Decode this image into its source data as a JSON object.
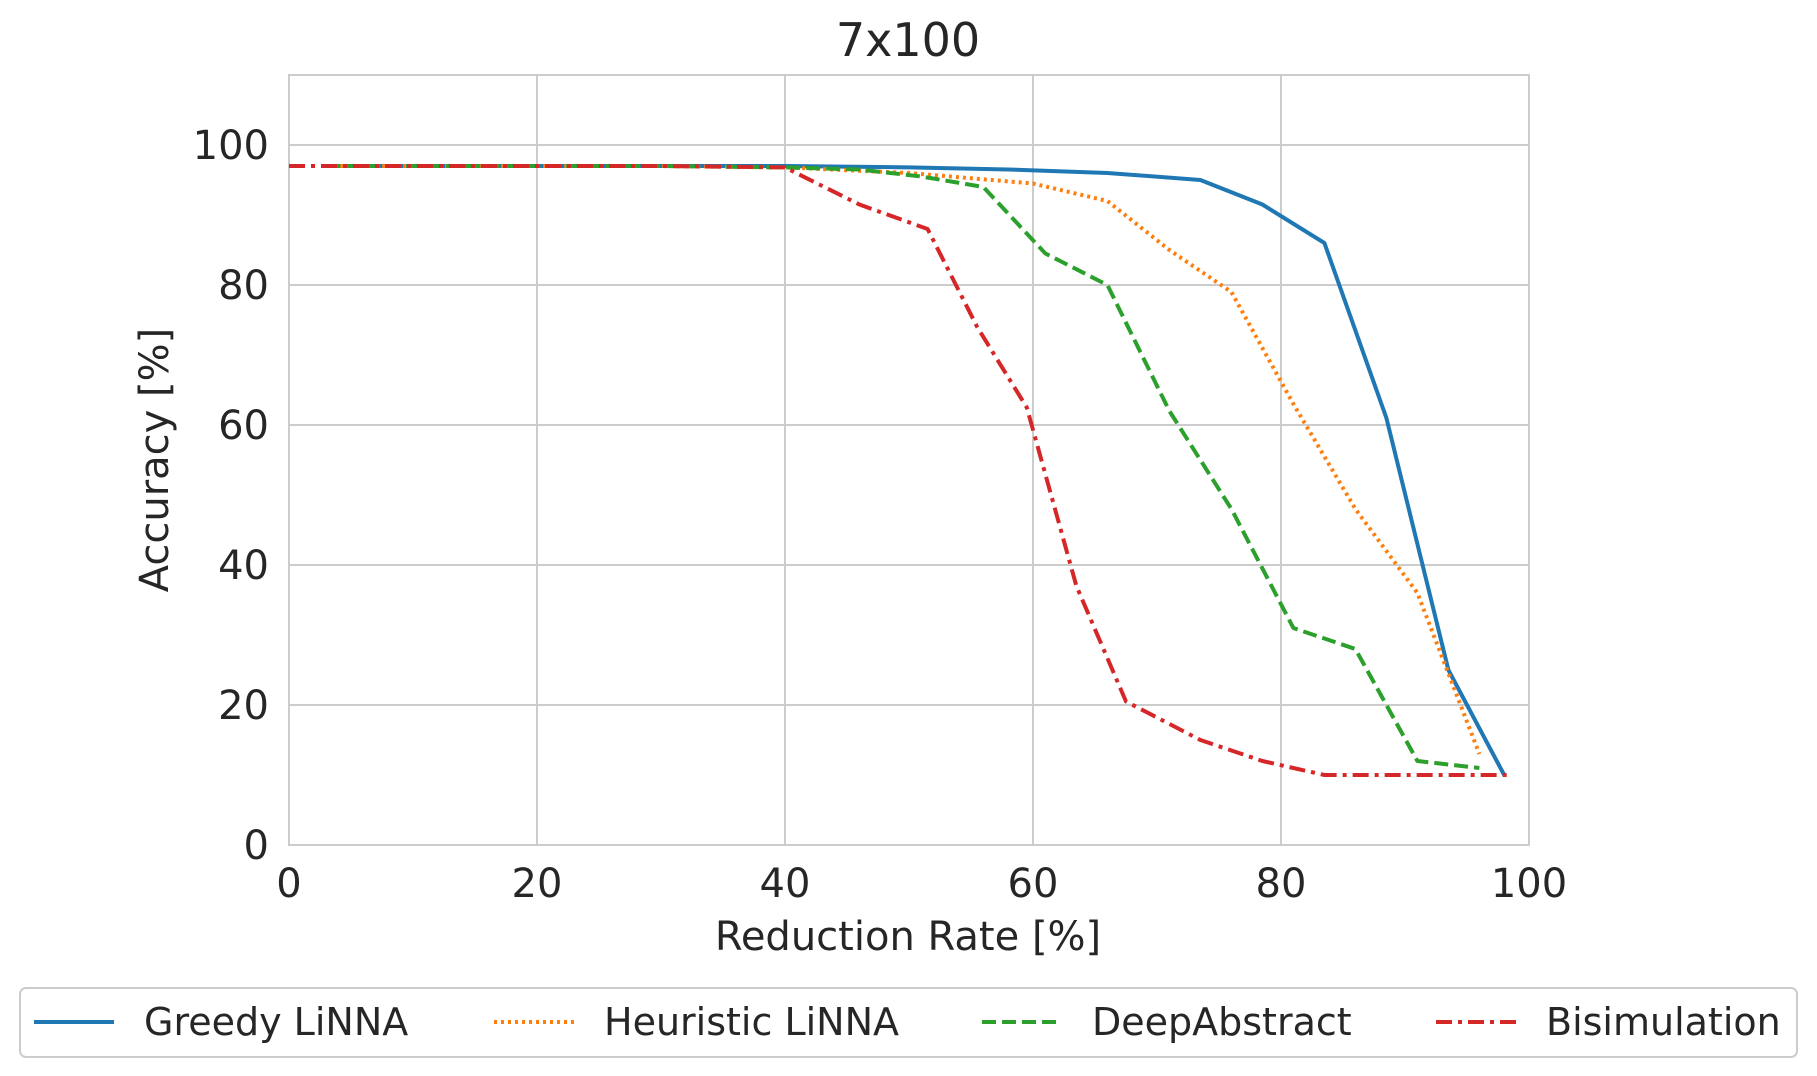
{
  "chart_data": {
    "type": "line",
    "title": "7x100",
    "xlabel": "Reduction Rate [%]",
    "ylabel": "Accuracy [%]",
    "xlim": [
      0,
      100
    ],
    "ylim": [
      0,
      110
    ],
    "xticks": [
      0,
      20,
      40,
      60,
      80,
      100
    ],
    "yticks": [
      0,
      20,
      40,
      60,
      80,
      100
    ],
    "grid": true,
    "legend_position": "bottom-outside",
    "series": [
      {
        "name": "Greedy LiNNA",
        "color": "#1f77b4",
        "dash": "solid",
        "x": [
          3,
          10,
          20,
          30,
          40,
          50,
          58,
          66,
          73.5,
          78.5,
          83.5,
          88.5,
          93.5,
          98
        ],
        "y": [
          97,
          97,
          97,
          97,
          97,
          96.8,
          96.5,
          96,
          95,
          91.5,
          86,
          61,
          25,
          10
        ]
      },
      {
        "name": "Heuristic LiNNA",
        "color": "#ff7f0e",
        "dash": "dotted",
        "x": [
          3,
          10,
          20,
          30,
          40,
          50,
          60,
          66,
          71,
          76,
          81,
          86,
          91,
          96
        ],
        "y": [
          97,
          97,
          97,
          97,
          96.8,
          96,
          94.5,
          92,
          85,
          79,
          63,
          48,
          36,
          13
        ]
      },
      {
        "name": "DeepAbstract",
        "color": "#2ca02c",
        "dash": "dashed",
        "x": [
          3,
          10,
          20,
          30,
          40,
          46,
          51,
          56,
          61,
          66,
          71,
          76,
          81,
          86,
          91,
          96
        ],
        "y": [
          97,
          97,
          97,
          97,
          96.8,
          96.5,
          95.5,
          94,
          84.5,
          80,
          62,
          48,
          31,
          28,
          12,
          11
        ]
      },
      {
        "name": "Bisimulation",
        "color": "#d62728",
        "dash": "dashdot",
        "x": [
          0,
          10,
          20,
          30,
          40,
          46,
          51.5,
          55.5,
          59.5,
          63.5,
          67.5,
          73.5,
          78.5,
          83.5,
          88.5,
          93.5,
          98.5
        ],
        "y": [
          97,
          97,
          97,
          97,
          96.8,
          91.5,
          88,
          74,
          62.5,
          37,
          20.5,
          15,
          12,
          10,
          10,
          10,
          10
        ]
      }
    ]
  }
}
